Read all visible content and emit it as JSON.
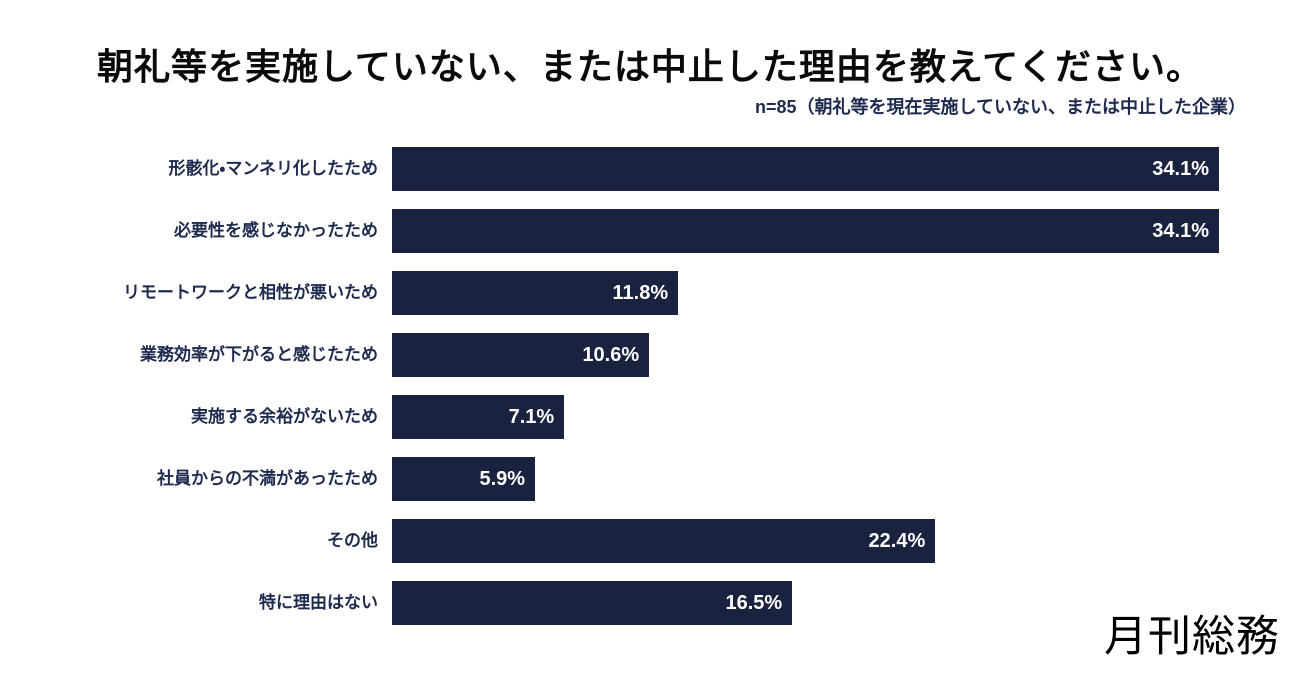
{
  "header": {
    "title": "朝礼等を実施していない、または中止した理由を教えてください。",
    "subtitle": "n=85（朝礼等を現在実施していない、または中止した企業）"
  },
  "chart_data": {
    "type": "bar",
    "orientation": "horizontal",
    "title": "朝礼等を実施していない、または中止した理由を教えてください。",
    "subtitle": "n=85（朝礼等を現在実施していない、または中止した企業）",
    "sample_size": "n=85",
    "categories": [
      "形骸化・マンネリ化したため",
      "必要性を感じなかったため",
      "リモートワークと相性が悪いため",
      "業務効率が下がると感じたため",
      "実施する余裕がないため",
      "社員からの不満があったため",
      "その他",
      "特に理由はない"
    ],
    "values": [
      34.1,
      34.1,
      11.8,
      10.6,
      7.1,
      5.9,
      22.4,
      16.5
    ],
    "value_labels": [
      "34.1%",
      "34.1%",
      "11.8%",
      "10.6%",
      "7.1%",
      "5.9%",
      "22.4%",
      "16.5%"
    ],
    "unit": "%",
    "xlim": [
      0,
      34.1
    ],
    "grid": false,
    "legend": false,
    "bar_color": "#1a2240",
    "value_label_color": "#ffffff",
    "category_label_color": "#1e2a4e",
    "title_color": "#0a0a0a"
  },
  "footer": {
    "logo_text": "月刊総務"
  }
}
